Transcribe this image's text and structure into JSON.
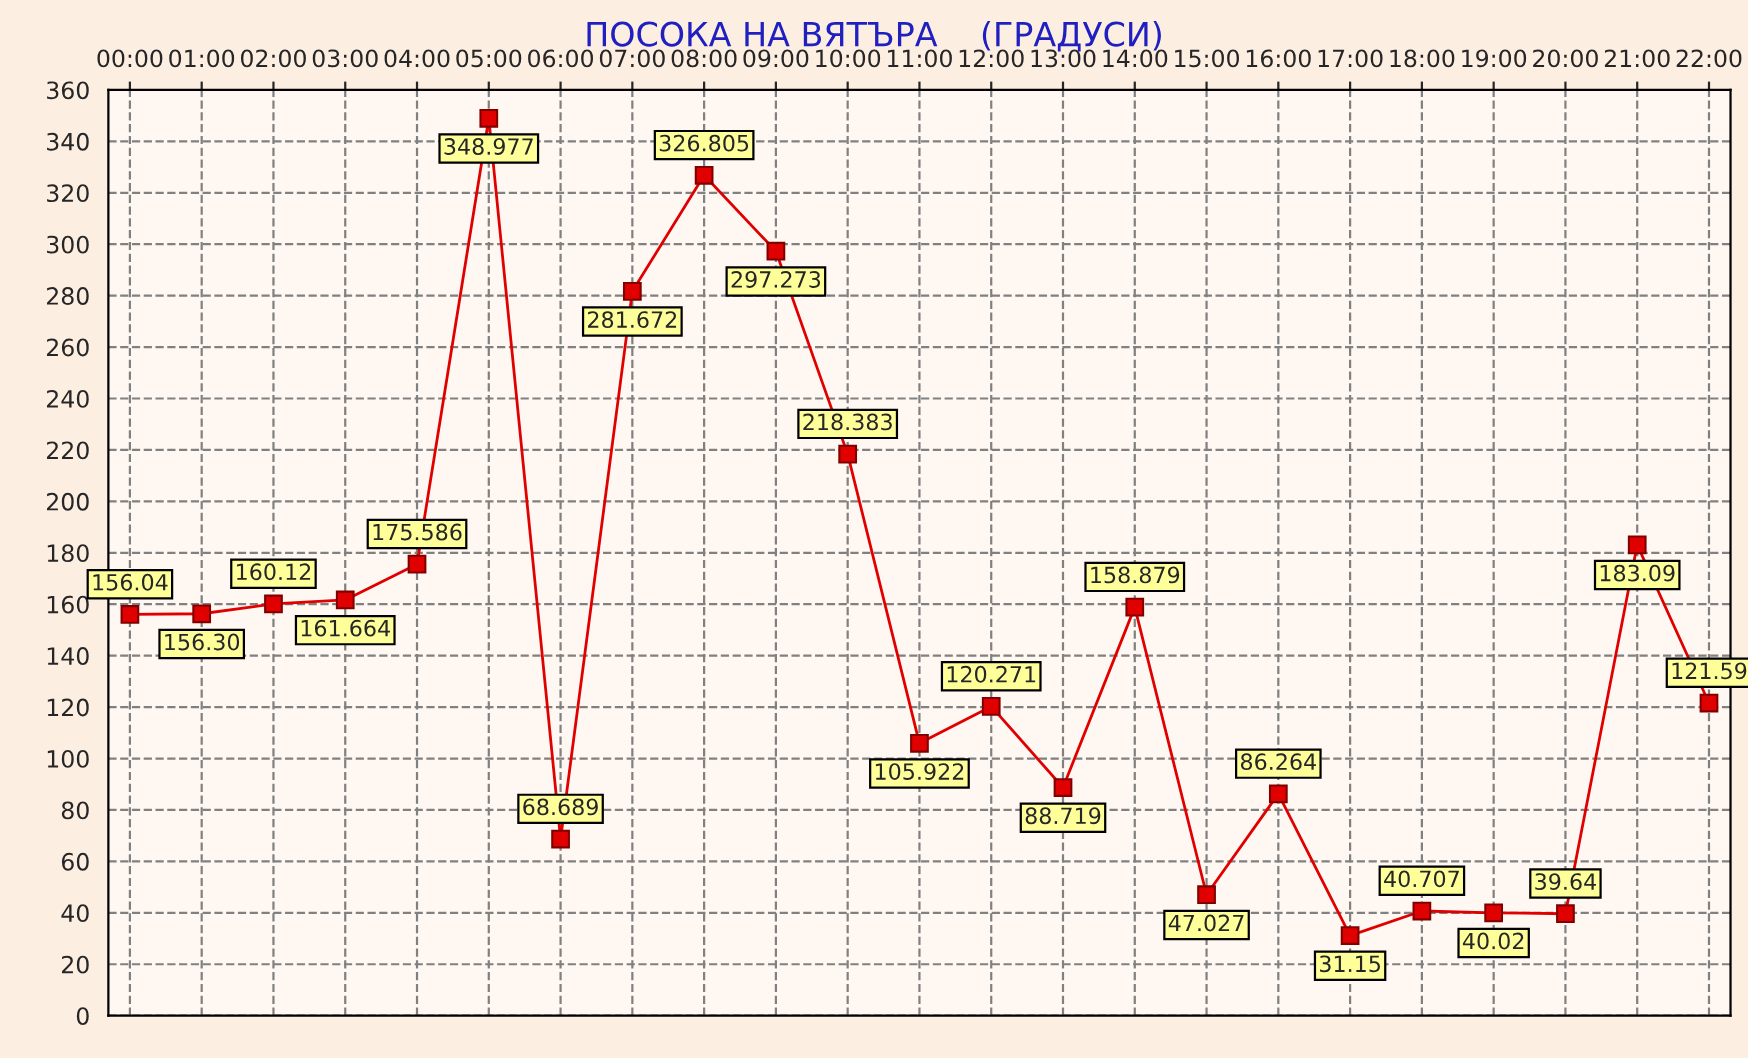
{
  "chart_data": {
    "type": "line",
    "title": "ПОСОКА НА ВЯТЪРА    (ГРАДУСИ)",
    "categories": [
      "00:00",
      "01:00",
      "02:00",
      "03:00",
      "04:00",
      "05:00",
      "06:00",
      "07:00",
      "08:00",
      "09:00",
      "10:00",
      "11:00",
      "12:00",
      "13:00",
      "14:00",
      "15:00",
      "16:00",
      "17:00",
      "18:00",
      "19:00",
      "20:00",
      "21:00",
      "22:00"
    ],
    "series": [
      {
        "color": "#e00000",
        "values": [
          156.04,
          156.3,
          160.12,
          161.664,
          175.586,
          348.977,
          68.689,
          281.672,
          326.805,
          297.273,
          218.383,
          105.922,
          120.271,
          88.719,
          158.879,
          47.027,
          86.264,
          31.15,
          40.707,
          40.02,
          39.64,
          183.09,
          121.59
        ]
      }
    ],
    "value_labels": [
      "156.04",
      "156.30",
      "160.12",
      "161.664",
      "175.586",
      "348.977",
      "68.689",
      "281.672",
      "326.805",
      "297.273",
      "218.383",
      "105.922",
      "120.271",
      "88.719",
      "158.879",
      "47.027",
      "86.264",
      "31.15",
      "40.707",
      "40.02",
      "39.64",
      "183.09",
      "121.59"
    ],
    "ylim": [
      0,
      360
    ],
    "yticks": [
      0,
      20,
      40,
      60,
      80,
      100,
      120,
      140,
      160,
      180,
      200,
      220,
      240,
      260,
      280,
      300,
      320,
      340,
      360
    ],
    "grid": true,
    "marker": "square",
    "line_style": "solid"
  }
}
